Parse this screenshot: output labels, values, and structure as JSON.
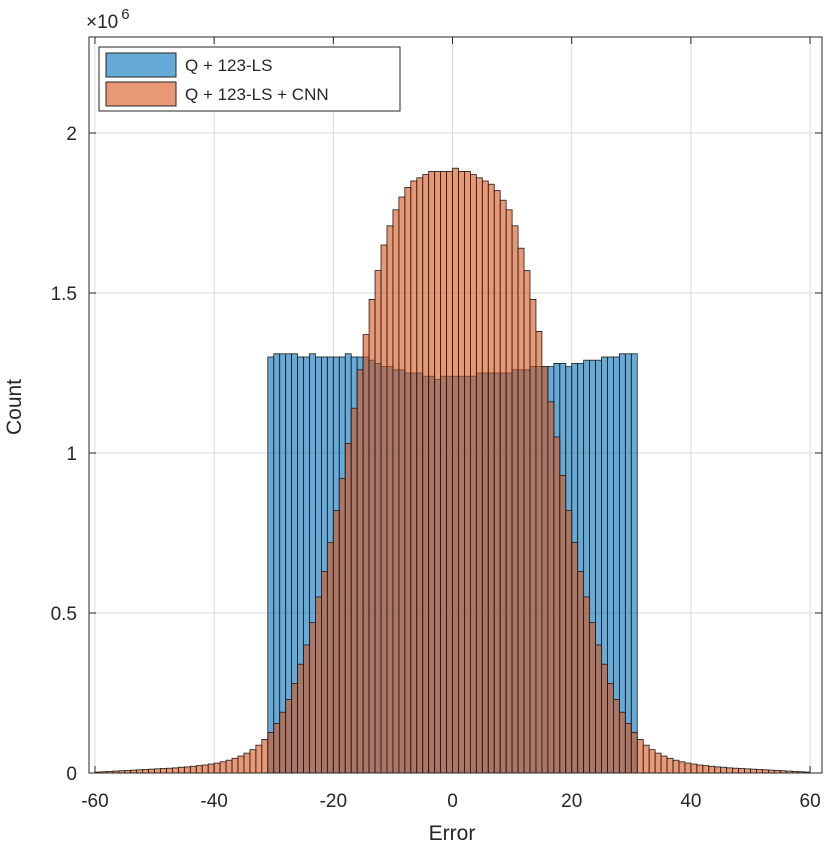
{
  "chart_data": {
    "type": "bar",
    "xlabel": "Error",
    "ylabel": "Count",
    "y_multiplier_label": "×10",
    "y_multiplier_exponent": "6",
    "xlim": [
      -61,
      62
    ],
    "ylim": [
      0,
      2.3
    ],
    "x_ticks": [
      -60,
      -40,
      -20,
      0,
      20,
      40,
      60
    ],
    "x_tick_labels": [
      "-60",
      "-40",
      "-20",
      "0",
      "20",
      "40",
      "60"
    ],
    "y_ticks": [
      0,
      0.5,
      1,
      1.5,
      2
    ],
    "y_tick_labels": [
      "0",
      "0.5",
      "1",
      "1.5",
      "2"
    ],
    "grid": true,
    "legend_position": "top-left",
    "bin_width": 1,
    "series": [
      {
        "name": "Q + 123-LS",
        "color": "#0072BD",
        "fill_opacity": 0.6,
        "bin_starts": [
          -31,
          -30,
          -29,
          -28,
          -27,
          -26,
          -25,
          -24,
          -23,
          -22,
          -21,
          -20,
          -19,
          -18,
          -17,
          -16,
          -15,
          -14,
          -13,
          -12,
          -11,
          -10,
          -9,
          -8,
          -7,
          -6,
          -5,
          -4,
          -3,
          -2,
          -1,
          0,
          1,
          2,
          3,
          4,
          5,
          6,
          7,
          8,
          9,
          10,
          11,
          12,
          13,
          14,
          15,
          16,
          17,
          18,
          19,
          20,
          21,
          22,
          23,
          24,
          25,
          26,
          27,
          28,
          29,
          30
        ],
        "values": [
          1.3,
          1.31,
          1.31,
          1.31,
          1.31,
          1.3,
          1.3,
          1.31,
          1.3,
          1.3,
          1.3,
          1.3,
          1.3,
          1.31,
          1.3,
          1.3,
          1.3,
          1.29,
          1.28,
          1.27,
          1.27,
          1.26,
          1.26,
          1.25,
          1.25,
          1.25,
          1.24,
          1.24,
          1.23,
          1.24,
          1.24,
          1.24,
          1.24,
          1.24,
          1.24,
          1.25,
          1.25,
          1.25,
          1.25,
          1.25,
          1.25,
          1.26,
          1.26,
          1.26,
          1.27,
          1.27,
          1.27,
          1.27,
          1.28,
          1.28,
          1.27,
          1.28,
          1.28,
          1.29,
          1.29,
          1.29,
          1.3,
          1.3,
          1.3,
          1.31,
          1.31,
          1.31
        ]
      },
      {
        "name": "Q + 123-LS + CNN",
        "color": "#D95319",
        "fill_opacity": 0.6,
        "bin_starts": [
          -60,
          -59,
          -58,
          -57,
          -56,
          -55,
          -54,
          -53,
          -52,
          -51,
          -50,
          -49,
          -48,
          -47,
          -46,
          -45,
          -44,
          -43,
          -42,
          -41,
          -40,
          -39,
          -38,
          -37,
          -36,
          -35,
          -34,
          -33,
          -32,
          -31,
          -30,
          -29,
          -28,
          -27,
          -26,
          -25,
          -24,
          -23,
          -22,
          -21,
          -20,
          -19,
          -18,
          -17,
          -16,
          -15,
          -14,
          -13,
          -12,
          -11,
          -10,
          -9,
          -8,
          -7,
          -6,
          -5,
          -4,
          -3,
          -2,
          -1,
          0,
          1,
          2,
          3,
          4,
          5,
          6,
          7,
          8,
          9,
          10,
          11,
          12,
          13,
          14,
          15,
          16,
          17,
          18,
          19,
          20,
          21,
          22,
          23,
          24,
          25,
          26,
          27,
          28,
          29,
          30,
          31,
          32,
          33,
          34,
          35,
          36,
          37,
          38,
          39,
          40,
          41,
          42,
          43,
          44,
          45,
          46,
          47,
          48,
          49,
          50,
          51,
          52,
          53,
          54,
          55,
          56,
          57,
          58,
          59
        ],
        "values": [
          0.003,
          0.004,
          0.005,
          0.006,
          0.007,
          0.008,
          0.009,
          0.01,
          0.011,
          0.012,
          0.013,
          0.014,
          0.015,
          0.016,
          0.018,
          0.019,
          0.021,
          0.023,
          0.025,
          0.028,
          0.031,
          0.035,
          0.04,
          0.046,
          0.053,
          0.062,
          0.073,
          0.087,
          0.105,
          0.127,
          0.155,
          0.19,
          0.23,
          0.28,
          0.34,
          0.4,
          0.47,
          0.55,
          0.63,
          0.72,
          0.82,
          0.92,
          1.03,
          1.14,
          1.26,
          1.37,
          1.48,
          1.57,
          1.65,
          1.71,
          1.76,
          1.8,
          1.83,
          1.85,
          1.86,
          1.87,
          1.88,
          1.88,
          1.88,
          1.88,
          1.89,
          1.88,
          1.88,
          1.87,
          1.86,
          1.85,
          1.84,
          1.82,
          1.79,
          1.76,
          1.71,
          1.64,
          1.57,
          1.48,
          1.38,
          1.27,
          1.16,
          1.05,
          0.93,
          0.82,
          0.72,
          0.63,
          0.55,
          0.47,
          0.4,
          0.34,
          0.28,
          0.23,
          0.19,
          0.155,
          0.127,
          0.105,
          0.087,
          0.073,
          0.062,
          0.053,
          0.046,
          0.04,
          0.035,
          0.031,
          0.028,
          0.025,
          0.023,
          0.021,
          0.019,
          0.018,
          0.016,
          0.015,
          0.014,
          0.013,
          0.012,
          0.011,
          0.01,
          0.009,
          0.008,
          0.007,
          0.006,
          0.005,
          0.004,
          0.003
        ]
      }
    ]
  }
}
